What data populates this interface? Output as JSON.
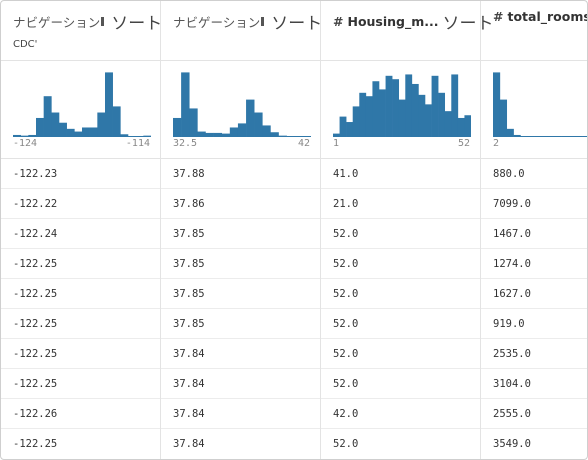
{
  "columns": [
    {
      "title": "ナビゲーション",
      "sort_label": "ソート",
      "subtitle": "CDC'",
      "range_min": "-124",
      "range_max": "-114",
      "bar_color": "#2f77a8",
      "histogram": [
        0.03,
        0.02,
        0.03,
        0.28,
        0.6,
        0.36,
        0.21,
        0.12,
        0.08,
        0.14,
        0.14,
        0.36,
        0.95,
        0.45,
        0.04,
        0.01,
        0.01,
        0.02
      ],
      "values": [
        "-122.23",
        "-122.22",
        "-122.24",
        "-122.25",
        "-122.25",
        "-122.25",
        "-122.25",
        "-122.25",
        "-122.26",
        "-122.25"
      ]
    },
    {
      "title": "ナビゲーション",
      "sort_label": "ソート",
      "subtitle": "",
      "range_min": "32.5",
      "range_max": "42",
      "bar_color": "#2f77a8",
      "histogram": [
        0.28,
        0.95,
        0.42,
        0.08,
        0.06,
        0.06,
        0.05,
        0.14,
        0.2,
        0.55,
        0.36,
        0.17,
        0.07,
        0.02,
        0.01,
        0.01,
        0.01
      ],
      "values": [
        "37.88",
        "37.86",
        "37.85",
        "37.85",
        "37.85",
        "37.85",
        "37.84",
        "37.84",
        "37.84",
        "37.84"
      ]
    },
    {
      "title": "Housing_m...",
      "sort_label": "ソート",
      "subtitle": "",
      "range_min": "1",
      "range_max": "52",
      "bar_color": "#2f77a8",
      "histogram": [
        0.05,
        0.3,
        0.22,
        0.45,
        0.65,
        0.6,
        0.82,
        0.7,
        0.9,
        0.85,
        0.55,
        0.92,
        0.78,
        0.62,
        0.48,
        0.9,
        0.65,
        0.38,
        0.92,
        0.28,
        0.32
      ],
      "values": [
        "41.0",
        "21.0",
        "52.0",
        "52.0",
        "52.0",
        "52.0",
        "52.0",
        "52.0",
        "42.0",
        "52.0"
      ]
    },
    {
      "title": "total_rooms",
      "sort_label": "",
      "subtitle": "",
      "range_min": "2",
      "range_max": "",
      "bar_color": "#2f77a8",
      "histogram": [
        0.95,
        0.55,
        0.12,
        0.03,
        0.01,
        0.01,
        0.01,
        0.01,
        0.01,
        0.01,
        0.01,
        0.01,
        0.01,
        0.01
      ],
      "values": [
        "880.0",
        "7099.0",
        "1467.0",
        "1274.0",
        "1627.0",
        "919.0",
        "2535.0",
        "3104.0",
        "2555.0",
        "3549.0"
      ]
    }
  ]
}
